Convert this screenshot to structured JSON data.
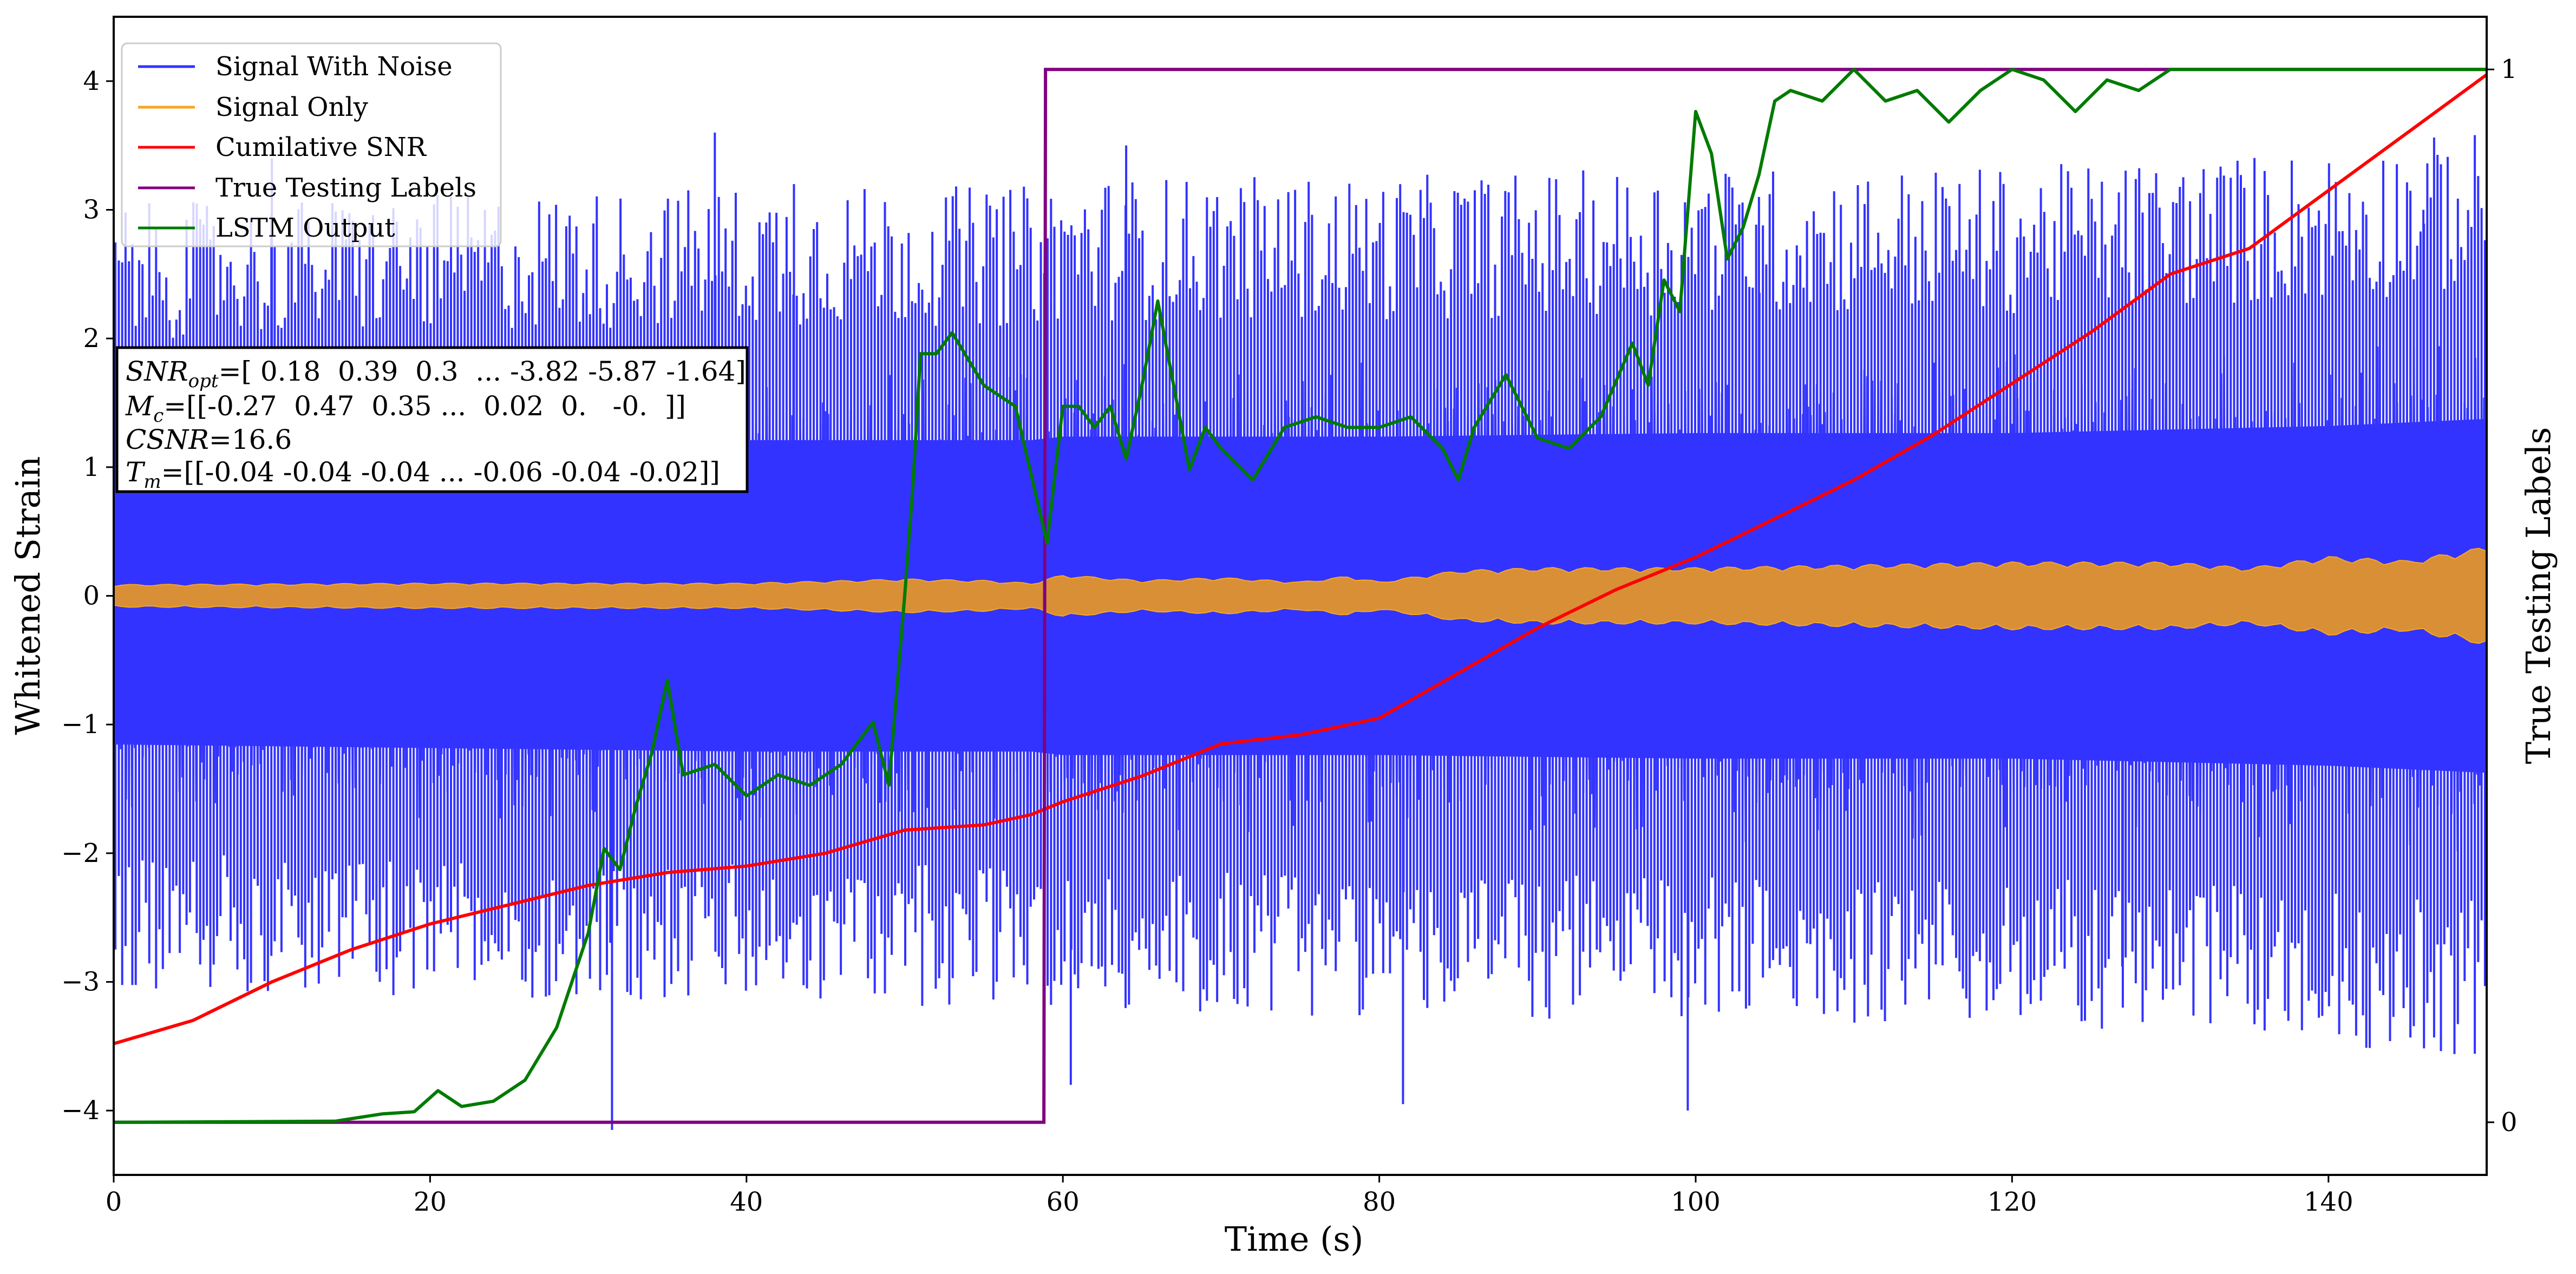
{
  "chart_data": {
    "type": "line",
    "xlabel": "Time (s)",
    "ylabel": "Whitened Strain",
    "y2label": "True Testing Labels",
    "xlim": [
      0,
      150
    ],
    "ylim": [
      -4.5,
      4.5
    ],
    "y2lim": [
      -0.05,
      1.05
    ],
    "xticks": [
      0,
      20,
      40,
      60,
      80,
      100,
      120,
      140
    ],
    "yticks": [
      -4,
      -3,
      -2,
      -1,
      0,
      1,
      2,
      3,
      4
    ],
    "y2ticks": [
      0,
      1
    ],
    "xtick_labels": [
      "0",
      "20",
      "40",
      "60",
      "80",
      "100",
      "120",
      "140"
    ],
    "ytick_labels": [
      "−4",
      "−3",
      "−2",
      "−1",
      "0",
      "1",
      "2",
      "3",
      "4"
    ],
    "y2tick_labels": [
      "0",
      "1"
    ],
    "legend": {
      "placement": "upper-left",
      "entries": [
        "Signal With Noise",
        "Signal Only",
        "Cumilative SNR",
        "True Testing Labels",
        "LSTM Output"
      ]
    },
    "annotation": {
      "placement": "left-middle",
      "lines": [
        {
          "label": "SNR",
          "sub": "opt",
          "value": "=[ 0.18  0.39  0.3  ... -3.82 -5.87 -1.64]"
        },
        {
          "label": "M",
          "sub": "c",
          "value": "=[[-0.27  0.47  0.35 ...  0.02  0.   -0.  ]]"
        },
        {
          "label": "CSNR",
          "sub": "",
          "value": "=16.6"
        },
        {
          "label": "T",
          "sub": "m",
          "value": "=[[-0.04 -0.04 -0.04 ... -0.06 -0.04 -0.02]]"
        }
      ]
    },
    "series": [
      {
        "name": "Signal With Noise",
        "color": "#3333ff",
        "axis": "y",
        "kind": "noise",
        "band_x": [
          0,
          20,
          40,
          50,
          58,
          60,
          80,
          100,
          120,
          140,
          150
        ],
        "band_amplitude": [
          2.1,
          2.15,
          2.2,
          2.2,
          2.2,
          2.25,
          2.25,
          2.3,
          2.3,
          2.4,
          2.5
        ],
        "spikes": [
          {
            "x": 10,
            "y": 3.4
          },
          {
            "x": 31.5,
            "y": -4.15
          },
          {
            "x": 38,
            "y": 3.6
          },
          {
            "x": 43,
            "y": 3.2
          },
          {
            "x": 60.5,
            "y": -3.8
          },
          {
            "x": 64,
            "y": 3.5
          },
          {
            "x": 81.5,
            "y": -3.95
          },
          {
            "x": 99.5,
            "y": -4.0
          },
          {
            "x": 104,
            "y": 3.1
          },
          {
            "x": 127,
            "y": -3.2
          },
          {
            "x": 146,
            "y": 3.0
          }
        ]
      },
      {
        "name": "Signal Only",
        "color": "#f5a623",
        "fill": "#d88f36",
        "axis": "y",
        "kind": "envelope",
        "x": [
          0,
          20,
          40,
          50,
          55,
          58,
          60,
          65,
          70,
          75,
          78,
          80,
          85,
          90,
          100,
          110,
          120,
          130,
          135,
          140,
          145,
          150
        ],
        "amplitude": [
          0.08,
          0.09,
          0.09,
          0.12,
          0.11,
          0.09,
          0.15,
          0.11,
          0.13,
          0.1,
          0.14,
          0.1,
          0.18,
          0.2,
          0.2,
          0.22,
          0.24,
          0.24,
          0.2,
          0.28,
          0.25,
          0.35
        ]
      },
      {
        "name": "Cumilative SNR",
        "color": "#ff0000",
        "axis": "y",
        "x": [
          0,
          5,
          10,
          15,
          20,
          25,
          30,
          35,
          40,
          45,
          50,
          55,
          58,
          60,
          65,
          70,
          75,
          80,
          85,
          90,
          95,
          100,
          105,
          110,
          115,
          120,
          125,
          130,
          135,
          140,
          145,
          150
        ],
        "y": [
          -3.48,
          -3.3,
          -3.0,
          -2.75,
          -2.55,
          -2.4,
          -2.25,
          -2.15,
          -2.1,
          -2.0,
          -1.82,
          -1.78,
          -1.7,
          -1.6,
          -1.4,
          -1.15,
          -1.08,
          -0.95,
          -0.6,
          -0.25,
          0.05,
          0.3,
          0.6,
          0.9,
          1.25,
          1.65,
          2.05,
          2.5,
          2.7,
          3.15,
          3.6,
          4.05
        ]
      },
      {
        "name": "True Testing Labels",
        "color": "#800080",
        "axis": "y2",
        "x": [
          0,
          58.8,
          58.9,
          150
        ],
        "y": [
          0,
          0,
          1,
          1
        ]
      },
      {
        "name": "LSTM Output",
        "color": "#007a00",
        "axis": "y2",
        "x": [
          0,
          14,
          17,
          19,
          20.5,
          22,
          24,
          26,
          28,
          30,
          31,
          32,
          33,
          34,
          35,
          36,
          38,
          40,
          42,
          44,
          46,
          48,
          49,
          50,
          50.5,
          51,
          52,
          53,
          55,
          57,
          59,
          60,
          61,
          62,
          63,
          64,
          65,
          66,
          67,
          68,
          69,
          70,
          72,
          74,
          76,
          78,
          80,
          82,
          84,
          85,
          86,
          88,
          90,
          92,
          94,
          96,
          97,
          98,
          99,
          100,
          101,
          102,
          103,
          104,
          105,
          106,
          108,
          110,
          112,
          114,
          116,
          118,
          120,
          122,
          124,
          126,
          128,
          130,
          135,
          140,
          145,
          150
        ],
        "y": [
          0,
          0.001,
          0.008,
          0.01,
          0.03,
          0.015,
          0.02,
          0.04,
          0.09,
          0.18,
          0.26,
          0.24,
          0.3,
          0.35,
          0.42,
          0.33,
          0.34,
          0.31,
          0.33,
          0.32,
          0.34,
          0.38,
          0.32,
          0.5,
          0.6,
          0.73,
          0.73,
          0.75,
          0.7,
          0.68,
          0.55,
          0.68,
          0.68,
          0.66,
          0.68,
          0.63,
          0.7,
          0.78,
          0.7,
          0.62,
          0.66,
          0.64,
          0.61,
          0.66,
          0.67,
          0.66,
          0.66,
          0.67,
          0.64,
          0.61,
          0.66,
          0.71,
          0.65,
          0.64,
          0.67,
          0.74,
          0.7,
          0.8,
          0.77,
          0.96,
          0.92,
          0.82,
          0.85,
          0.9,
          0.97,
          0.98,
          0.97,
          1.0,
          0.97,
          0.98,
          0.95,
          0.98,
          1.0,
          0.99,
          0.96,
          0.99,
          0.98,
          1.0,
          1.0,
          1.0,
          1.0,
          1.0
        ]
      }
    ]
  }
}
